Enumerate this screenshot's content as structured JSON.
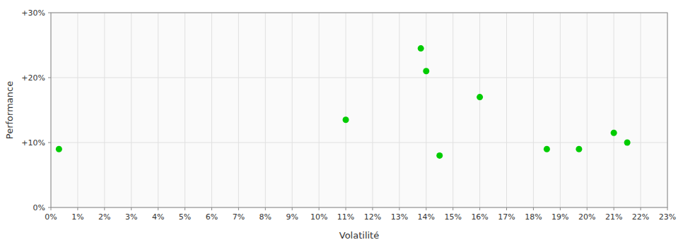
{
  "chart_data": {
    "type": "scatter",
    "x_label": "Volatilité",
    "y_label": "Performance",
    "x": [
      0.003,
      0.11,
      0.138,
      0.14,
      0.145,
      0.16,
      0.185,
      0.197,
      0.21,
      0.215
    ],
    "values": [
      0.09,
      0.135,
      0.245,
      0.21,
      0.08,
      0.17,
      0.09,
      0.09,
      0.115,
      0.1
    ],
    "color": "#00cc00",
    "marker": "circle",
    "xlim": [
      0,
      0.23
    ],
    "ylim": [
      0,
      0.3
    ],
    "xticks": [
      {
        "value": 0,
        "label": "0%"
      },
      {
        "value": 0.01,
        "label": "1%"
      },
      {
        "value": 0.02,
        "label": "2%"
      },
      {
        "value": 0.03,
        "label": "3%"
      },
      {
        "value": 0.04,
        "label": "4%"
      },
      {
        "value": 0.05,
        "label": "5%"
      },
      {
        "value": 0.06,
        "label": "6%"
      },
      {
        "value": 0.07,
        "label": "7%"
      },
      {
        "value": 0.08,
        "label": "8%"
      },
      {
        "value": 0.09,
        "label": "9%"
      },
      {
        "value": 0.1,
        "label": "10%"
      },
      {
        "value": 0.11,
        "label": "11%"
      },
      {
        "value": 0.12,
        "label": "12%"
      },
      {
        "value": 0.13,
        "label": "13%"
      },
      {
        "value": 0.14,
        "label": "14%"
      },
      {
        "value": 0.15,
        "label": "15%"
      },
      {
        "value": 0.16,
        "label": "16%"
      },
      {
        "value": 0.17,
        "label": "17%"
      },
      {
        "value": 0.18,
        "label": "18%"
      },
      {
        "value": 0.19,
        "label": "19%"
      },
      {
        "value": 0.2,
        "label": "20%"
      },
      {
        "value": 0.21,
        "label": "21%"
      },
      {
        "value": 0.22,
        "label": "22%"
      },
      {
        "value": 0.23,
        "label": "23%"
      }
    ],
    "yticks": [
      {
        "value": 0.0,
        "label": "0%"
      },
      {
        "value": 0.1,
        "label": "+10%"
      },
      {
        "value": 0.2,
        "label": "+20%"
      },
      {
        "value": 0.3,
        "label": "+30%"
      }
    ],
    "grid": true
  }
}
